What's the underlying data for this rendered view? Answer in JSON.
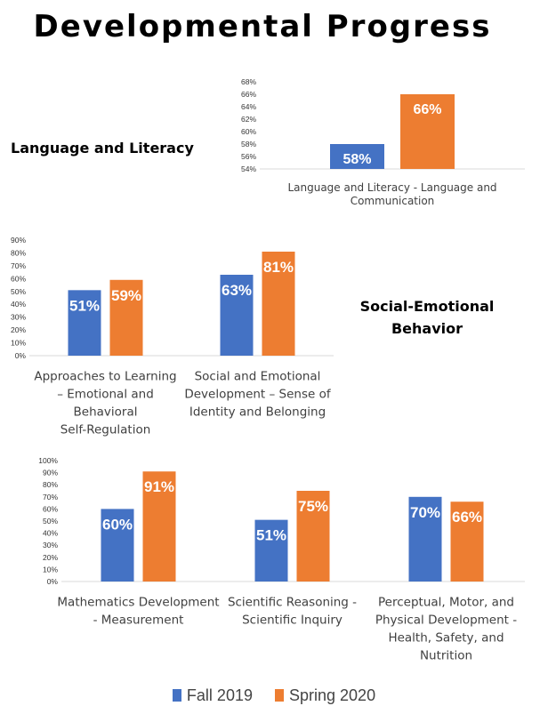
{
  "title": "Developmental Progress",
  "sections": {
    "language": "Language and Literacy",
    "social": "Social-Emotional Behavior"
  },
  "colors": {
    "fall": "#4472C4",
    "spring": "#ED7D31"
  },
  "legend": {
    "fall": "Fall 2019",
    "spring": "Spring 2020"
  },
  "chart_data": [
    {
      "type": "bar",
      "categories": [
        "Language and Literacy - Language and Communication"
      ],
      "series": [
        {
          "name": "Fall 2019",
          "values": [
            58
          ]
        },
        {
          "name": "Spring 2020",
          "values": [
            66
          ]
        }
      ],
      "ylim": [
        54,
        68
      ],
      "yticks": [
        "54%",
        "56%",
        "58%",
        "60%",
        "62%",
        "64%",
        "66%",
        "68%"
      ],
      "data_labels": [
        [
          "58%"
        ],
        [
          "66%"
        ]
      ]
    },
    {
      "type": "bar",
      "categories": [
        "Approaches to Learning – Emotional and Behavioral Self-Regulation",
        "Social and Emotional Development – Sense of Identity and Belonging"
      ],
      "series": [
        {
          "name": "Fall 2019",
          "values": [
            51,
            63
          ]
        },
        {
          "name": "Spring 2020",
          "values": [
            59,
            81
          ]
        }
      ],
      "ylim": [
        0,
        90
      ],
      "yticks": [
        "0%",
        "10%",
        "20%",
        "30%",
        "40%",
        "50%",
        "60%",
        "70%",
        "80%",
        "90%"
      ],
      "data_labels": [
        [
          "51%",
          "63%"
        ],
        [
          "59%",
          "81%"
        ]
      ]
    },
    {
      "type": "bar",
      "categories": [
        "Mathematics Development - Measurement",
        "Scientific Reasoning - Scientific Inquiry",
        "Perceptual, Motor, and Physical Development - Health, Safety, and Nutrition"
      ],
      "series": [
        {
          "name": "Fall 2019",
          "values": [
            60,
            51,
            70
          ]
        },
        {
          "name": "Spring 2020",
          "values": [
            91,
            75,
            66
          ]
        }
      ],
      "ylim": [
        0,
        100
      ],
      "yticks": [
        "0%",
        "10%",
        "20%",
        "30%",
        "40%",
        "50%",
        "60%",
        "70%",
        "80%",
        "90%",
        "100%"
      ],
      "data_labels": [
        [
          "60%",
          "51%",
          "70%"
        ],
        [
          "91%",
          "75%",
          "66%"
        ]
      ]
    }
  ]
}
